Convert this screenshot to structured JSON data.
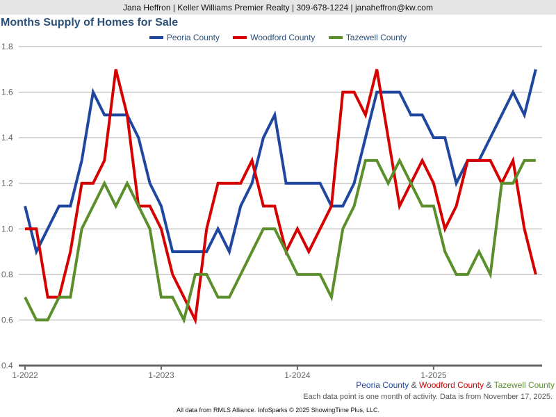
{
  "header": {
    "text": "Jana Heffron | Keller Williams Premier Realty | 309-678-1224 | janaheffron@kw.com"
  },
  "footer": {
    "amp": "&",
    "note": "Each data point is one month of activity. Data is from November 17, 2025.",
    "credit": "All data from RMLS Alliance. InfoSparks © 2025 ShowingTime Plus, LLC."
  },
  "chart_data": {
    "type": "line",
    "title": "Months Supply of Homes for Sale",
    "xlabel": "",
    "ylabel": "",
    "ylim": [
      0.4,
      1.8
    ],
    "yticks": [
      "0.4",
      "0.6",
      "0.8",
      "1.0",
      "1.2",
      "1.4",
      "1.6",
      "1.8"
    ],
    "xticks": [
      {
        "label": "1-2022",
        "index": 0
      },
      {
        "label": "1-2023",
        "index": 12
      },
      {
        "label": "1-2024",
        "index": 24
      },
      {
        "label": "1-2025",
        "index": 36
      }
    ],
    "x_start": "1-2022",
    "x_end": "10-2025",
    "legend_position": "top-center",
    "grid": true,
    "series": [
      {
        "name": "Peoria County",
        "color": "#1f47a0",
        "values": [
          1.1,
          0.9,
          1.0,
          1.1,
          1.1,
          1.3,
          1.6,
          1.5,
          1.5,
          1.5,
          1.4,
          1.2,
          1.1,
          0.9,
          0.9,
          0.9,
          0.9,
          1.0,
          0.9,
          1.1,
          1.2,
          1.4,
          1.5,
          1.2,
          1.2,
          1.2,
          1.2,
          1.1,
          1.1,
          1.2,
          1.4,
          1.6,
          1.6,
          1.6,
          1.5,
          1.5,
          1.4,
          1.4,
          1.2,
          1.3,
          1.3,
          1.4,
          1.5,
          1.6,
          1.5,
          1.7
        ]
      },
      {
        "name": "Woodford County",
        "color": "#d60000",
        "values": [
          1.0,
          1.0,
          0.7,
          0.7,
          0.9,
          1.2,
          1.2,
          1.3,
          1.7,
          1.5,
          1.1,
          1.1,
          1.0,
          0.8,
          0.7,
          0.6,
          1.0,
          1.2,
          1.2,
          1.2,
          1.3,
          1.1,
          1.1,
          0.9,
          1.0,
          0.9,
          1.0,
          1.1,
          1.6,
          1.6,
          1.5,
          1.7,
          1.4,
          1.1,
          1.2,
          1.3,
          1.2,
          1.0,
          1.1,
          1.3,
          1.3,
          1.3,
          1.2,
          1.3,
          1.0,
          0.8
        ]
      },
      {
        "name": "Tazewell County",
        "color": "#5b8f2b",
        "values": [
          0.7,
          0.6,
          0.6,
          0.7,
          0.7,
          1.0,
          1.1,
          1.2,
          1.1,
          1.2,
          1.1,
          1.0,
          0.7,
          0.7,
          0.6,
          0.8,
          0.8,
          0.7,
          0.7,
          0.8,
          0.9,
          1.0,
          1.0,
          0.9,
          0.8,
          0.8,
          0.8,
          0.7,
          1.0,
          1.1,
          1.3,
          1.3,
          1.2,
          1.3,
          1.2,
          1.1,
          1.1,
          0.9,
          0.8,
          0.8,
          0.9,
          0.8,
          1.2,
          1.2,
          1.3,
          1.3
        ]
      }
    ]
  }
}
